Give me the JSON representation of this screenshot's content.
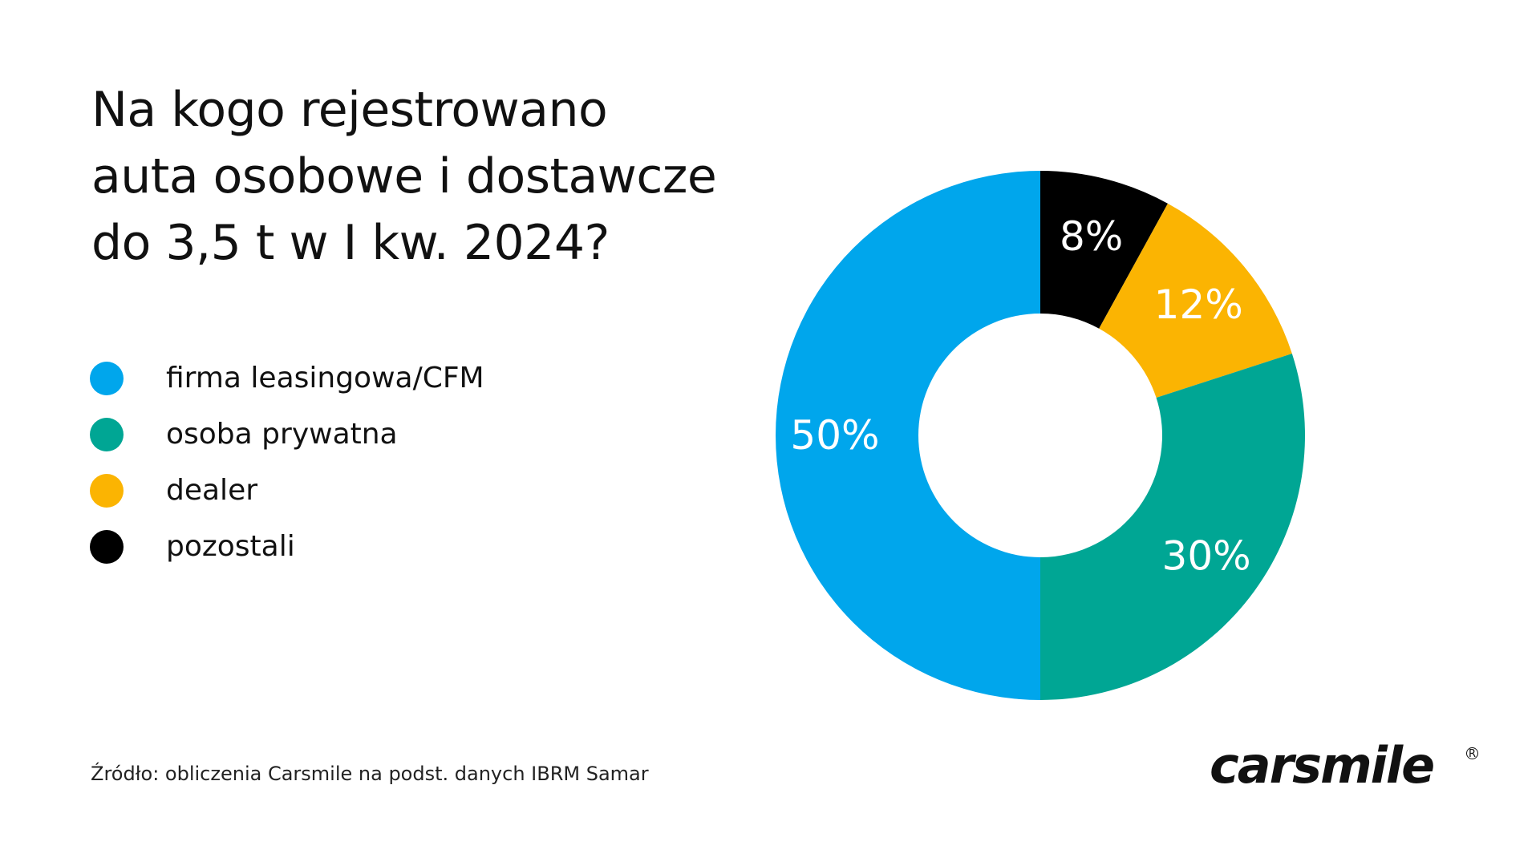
{
  "chart_data": {
    "type": "pie",
    "title": "Na kogo rejestrowano auta osobowe i dostawcze do 3,5 t w I kw. 2024?",
    "title_lines": [
      "Na kogo rejestrowano",
      "auta osobowe i dostawcze",
      "do 3,5 t w I kw. 2024?"
    ],
    "donut": true,
    "legend_position": "left",
    "slices": [
      {
        "label": "pozostali",
        "value": 8,
        "display": "8%",
        "color": "#000000"
      },
      {
        "label": "dealer",
        "value": 12,
        "display": "12%",
        "color": "#fbb402"
      },
      {
        "label": "osoba prywatna",
        "value": 30,
        "display": "30%",
        "color": "#00a694"
      },
      {
        "label": "firma leasingowa/CFM",
        "value": 50,
        "display": "50%",
        "color": "#00a6ec"
      }
    ],
    "legend": [
      {
        "label": "firma leasingowa/CFM",
        "color": "#00a6ec"
      },
      {
        "label": "osoba prywatna",
        "color": "#00a694"
      },
      {
        "label": "dealer",
        "color": "#fbb402"
      },
      {
        "label": "pozostali",
        "color": "#000000"
      }
    ]
  },
  "source": "Źródło: obliczenia Carsmile na podst. danych IBRM Samar",
  "logo": {
    "text": "carsmile",
    "registered_mark": "R"
  },
  "colors": {
    "background": "#ffffff",
    "text": "#111111",
    "slice_label_text": "#ffffff"
  }
}
